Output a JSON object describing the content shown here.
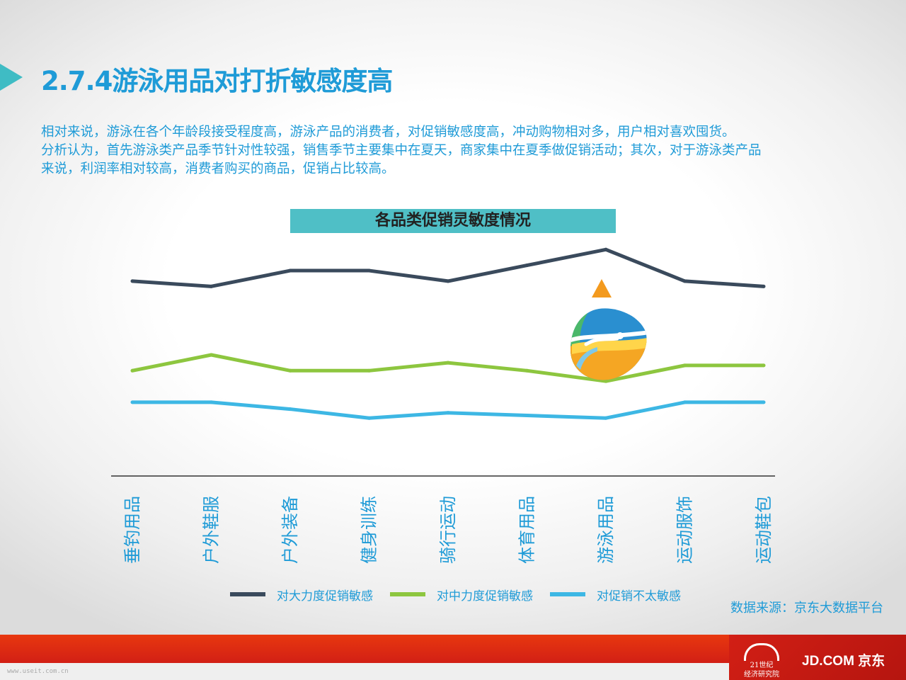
{
  "slide": {
    "title": "2.7.4游泳用品对打折敏感度高",
    "description": [
      "相对来说，游泳在各个年龄段接受程度高，游泳产品的消费者，对促销敏感度高，冲动购物相对多，用户相对喜欢囤货。",
      "分析认为，首先游泳类产品季节针对性较强，销售季节主要集中在夏天，商家集中在夏季做促销活动；其次，对于游泳类产品",
      "来说，利润率相对较高，消费者购买的商品，促销占比较高。"
    ],
    "source": "数据来源：京东大数据平台"
  },
  "footer": {
    "logo_21_line1": "21世纪",
    "logo_21_line2": "经济研究院",
    "logo_jd": "JD.COM 京东",
    "watermark": "www.useit.com.cn"
  },
  "chart_data": {
    "type": "line",
    "title": "各品类促销灵敏度情况",
    "categories": [
      "垂钓用品",
      "户外鞋服",
      "户外装备",
      "健身训练",
      "骑行运动",
      "体育用品",
      "游泳用品",
      "运动服饰",
      "运动鞋包"
    ],
    "series": [
      {
        "name": "对大力度促销敏感",
        "color": "#3a4a5c",
        "values": [
          0.54,
          0.53,
          0.56,
          0.56,
          0.54,
          0.57,
          0.6,
          0.54,
          0.53
        ]
      },
      {
        "name": "对中力度促销敏感",
        "color": "#8dc63f",
        "values": [
          0.37,
          0.4,
          0.37,
          0.37,
          0.385,
          0.37,
          0.35,
          0.38,
          0.38
        ]
      },
      {
        "name": "对促销不太敏感",
        "color": "#3db7e4",
        "values": [
          0.31,
          0.31,
          0.297,
          0.28,
          0.29,
          0.285,
          0.28,
          0.31,
          0.31
        ]
      }
    ],
    "ylim": [
      0.17,
      0.63
    ],
    "highlight_category": "游泳用品",
    "highlight_icon": "swimming-drop-icon",
    "highlight_marker_color": "#f39a1e",
    "legend_position": "bottom",
    "grid": false,
    "xlabel": "",
    "ylabel": ""
  }
}
